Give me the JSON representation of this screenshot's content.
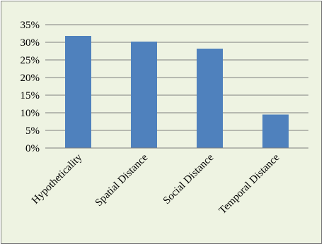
{
  "chart_data": {
    "type": "bar",
    "title": "",
    "xlabel": "",
    "ylabel": "",
    "categories": [
      "Hypotheticality",
      "Spatial Distance",
      "Social Distance",
      "Temporal Distance"
    ],
    "series": [
      {
        "values": [
          31.8,
          30.2,
          28.2,
          9.5
        ]
      }
    ],
    "ylim": [
      0,
      35
    ],
    "ytick_values": [
      0,
      5,
      10,
      15,
      20,
      25,
      30,
      35
    ],
    "ytick_labels": [
      "0%",
      "5%",
      "10%",
      "15%",
      "20%",
      "25%",
      "30%",
      "35%"
    ],
    "grid": true,
    "legend": "none",
    "colors": {
      "bar": "#4f81bd",
      "background": "#eef3e2",
      "gridline": "#7f7f7f",
      "axis": "#7f7f7f"
    }
  }
}
